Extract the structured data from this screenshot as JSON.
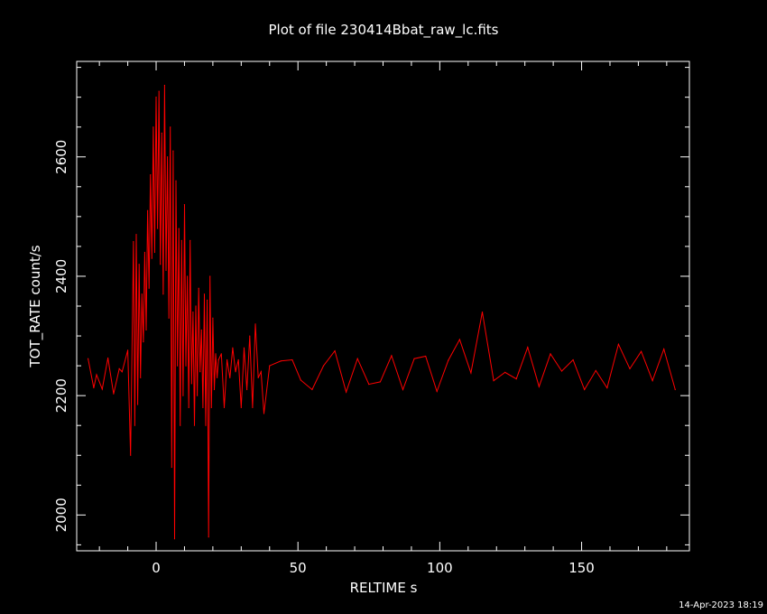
{
  "chart_data": {
    "type": "line",
    "title": "Plot of file 230414Bbat_raw_lc.fits",
    "xlabel": "RELTIME   s",
    "ylabel": "TOT_RATE   count/s",
    "footer": "14-Apr-2023 18:19",
    "xlim": [
      -28,
      188
    ],
    "ylim": [
      1940,
      2760
    ],
    "x_ticks": [
      0,
      50,
      100,
      150
    ],
    "y_ticks": [
      2000,
      2200,
      2400,
      2600
    ],
    "grid": false,
    "colors": {
      "background": "#000000",
      "axes": "#ffffff",
      "series": "#ff0000"
    },
    "series": [
      {
        "x": [
          -24,
          -22,
          -21,
          -19,
          -17,
          -15,
          -13,
          -12,
          -10,
          -9,
          -8,
          -7.5,
          -7,
          -6.5,
          -6,
          -5.5,
          -5,
          -4.5,
          -4,
          -3.5,
          -3,
          -2.5,
          -2,
          -1.5,
          -1,
          -0.5,
          0,
          0.5,
          1,
          1.5,
          2,
          2.5,
          3,
          3.5,
          4,
          4.5,
          5,
          5.5,
          6,
          6.5,
          7,
          7.5,
          8,
          8.5,
          9,
          9.5,
          10,
          10.5,
          11,
          11.5,
          12,
          12.5,
          13,
          13.5,
          14,
          14.5,
          15,
          15.5,
          16,
          16.5,
          17,
          17.5,
          18,
          18.5,
          19,
          19.5,
          20,
          20.5,
          21,
          21.5,
          22,
          23,
          24,
          25,
          26,
          27,
          28,
          29,
          30,
          31,
          32,
          33,
          34,
          35,
          36,
          37,
          38,
          40,
          44,
          48,
          51,
          55,
          59,
          63,
          67,
          71,
          75,
          79,
          83,
          87,
          91,
          95,
          99,
          103,
          107,
          111,
          115,
          119,
          123,
          127,
          131,
          135,
          139,
          143,
          147,
          151,
          155,
          159,
          163,
          167,
          171,
          175,
          179,
          183
        ],
        "values": [
          2262,
          2213,
          2235,
          2211,
          2263,
          2203,
          2245,
          2240,
          2276,
          2100,
          2458,
          2150,
          2470,
          2185,
          2420,
          2230,
          2370,
          2290,
          2440,
          2310,
          2510,
          2380,
          2570,
          2430,
          2650,
          2440,
          2700,
          2480,
          2710,
          2420,
          2640,
          2370,
          2720,
          2410,
          2600,
          2330,
          2650,
          2080,
          2610,
          1960,
          2560,
          2250,
          2480,
          2150,
          2460,
          2200,
          2520,
          2250,
          2400,
          2180,
          2460,
          2220,
          2340,
          2150,
          2350,
          2200,
          2380,
          2240,
          2310,
          2180,
          2370,
          2150,
          2360,
          1963,
          2400,
          2180,
          2330,
          2210,
          2270,
          2230,
          2260,
          2270,
          2180,
          2260,
          2230,
          2280,
          2240,
          2260,
          2180,
          2280,
          2210,
          2300,
          2180,
          2320,
          2230,
          2240,
          2170,
          2250,
          2258,
          2260,
          2226,
          2210,
          2250,
          2275,
          2206,
          2262,
          2219,
          2223,
          2267,
          2210,
          2262,
          2266,
          2207,
          2259,
          2294,
          2238,
          2340,
          2225,
          2239,
          2228,
          2281,
          2215,
          2270,
          2241,
          2260,
          2210,
          2242,
          2213,
          2286,
          2245,
          2274,
          2225,
          2278,
          2210
        ]
      }
    ]
  }
}
